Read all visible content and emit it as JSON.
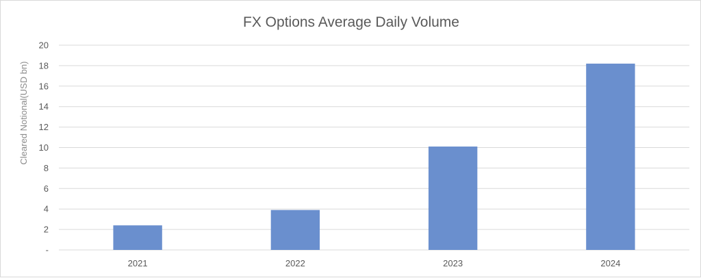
{
  "chart_data": {
    "type": "bar",
    "title": "FX Options Average Daily Volume",
    "xlabel": "",
    "ylabel": "Cleared Notional(USD bn)",
    "categories": [
      "2021",
      "2022",
      "2023",
      "2024"
    ],
    "values": [
      2.4,
      3.9,
      10.1,
      18.2
    ],
    "ylim": [
      0,
      20
    ],
    "yticks": [
      0,
      2,
      4,
      6,
      8,
      10,
      12,
      14,
      16,
      18,
      20
    ],
    "ytick_labels": [
      "-",
      "2",
      "4",
      "6",
      "8",
      "10",
      "12",
      "14",
      "16",
      "18",
      "20"
    ],
    "grid": true,
    "legend": "none",
    "bar_color": "#6a8fce"
  }
}
